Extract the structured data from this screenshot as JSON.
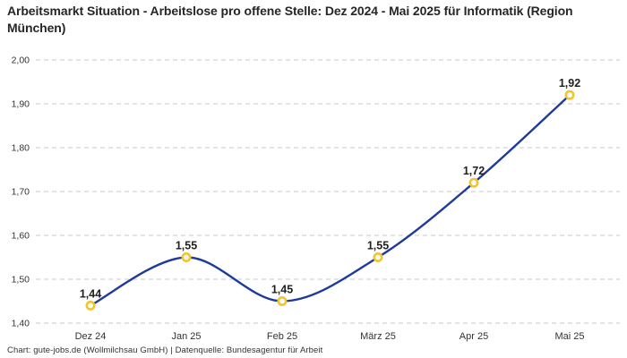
{
  "title": "Arbeitsmarkt Situation - Arbeitslose pro offene Stelle: Dez 2024 - Mai 2025 für Informatik (Region München)",
  "footer": {
    "text": "Chart: gute-jobs.de (Wollmilchsau GmbH) | Datenquelle: Bundesagentur für Arbeit"
  },
  "colors": {
    "line": "#1e3a9a",
    "marker_ring": "#f2c42d",
    "marker_fill": "#ffffff",
    "grid": "#c9c9c9",
    "label_text": "#1f1f1f",
    "tick_text": "#333333"
  },
  "chart_data": {
    "type": "line",
    "title": "Arbeitsmarkt Situation - Arbeitslose pro offene Stelle: Dez 2024 - Mai 2025 für Informatik (Region München)",
    "categories": [
      "Dez 24",
      "Jan 25",
      "Feb 25",
      "März 25",
      "Apr 25",
      "Mai 25"
    ],
    "values": [
      1.44,
      1.55,
      1.45,
      1.55,
      1.72,
      1.92
    ],
    "value_labels": [
      "1,44",
      "1,55",
      "1,45",
      "1,55",
      "1,72",
      "1,92"
    ],
    "xlabel": "",
    "ylabel": "",
    "ylim": [
      1.4,
      2.0
    ],
    "ytick_step": 0.1,
    "ytick_labels": [
      "1,40",
      "1,50",
      "1,60",
      "1,70",
      "1,80",
      "1,90",
      "2,00"
    ],
    "grid": "horizontal-dashed",
    "line_style": "smooth",
    "legend": "none"
  }
}
